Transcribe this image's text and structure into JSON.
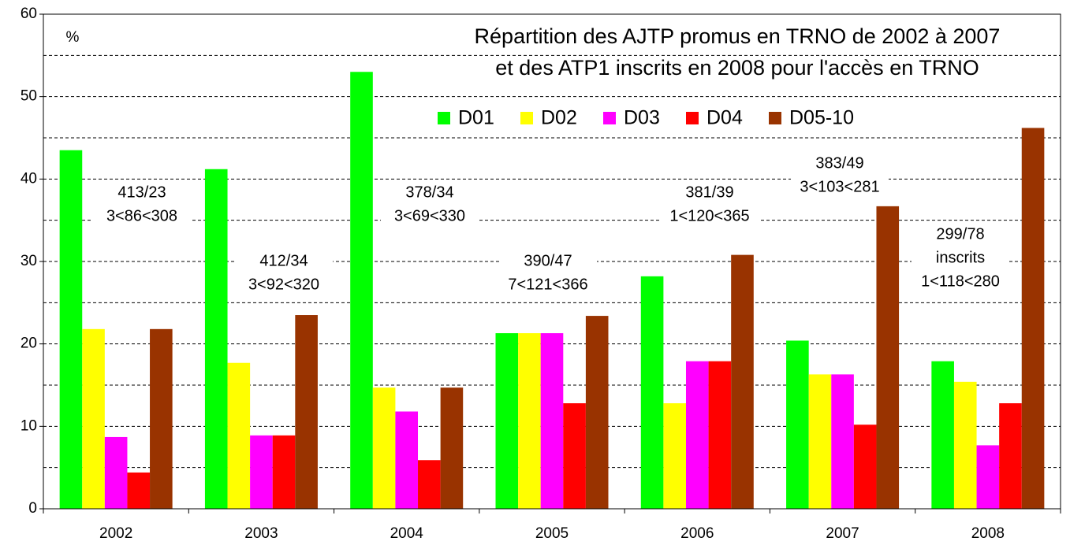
{
  "chart_data": {
    "type": "bar",
    "title": [
      "Répartition des AJTP promus en TRNO de 2002 à 2007",
      "et des ATP1 inscrits en 2008 pour l'accès en TRNO"
    ],
    "y_label": "%",
    "categories": [
      "2002",
      "2003",
      "2004",
      "2005",
      "2006",
      "2007",
      "2008"
    ],
    "series": [
      {
        "name": "D01",
        "color": "#00ff00",
        "values": [
          43.5,
          41.2,
          53,
          21.3,
          28.2,
          20.4,
          17.9
        ]
      },
      {
        "name": "D02",
        "color": "#ffff00",
        "values": [
          21.8,
          17.7,
          14.7,
          21.3,
          12.8,
          16.3,
          15.4
        ]
      },
      {
        "name": "D03",
        "color": "#ff00ff",
        "values": [
          8.7,
          8.9,
          11.8,
          21.3,
          17.9,
          16.3,
          7.7
        ]
      },
      {
        "name": "D04",
        "color": "#ff0000",
        "values": [
          4.4,
          8.9,
          5.9,
          12.8,
          17.9,
          10.2,
          12.8
        ]
      },
      {
        "name": "D05-10",
        "color": "#993300",
        "values": [
          21.8,
          23.5,
          14.7,
          23.4,
          30.8,
          36.7,
          46.2
        ]
      }
    ],
    "annotations": [
      [
        "413/23",
        "3<86<308"
      ],
      [
        "412/34",
        "3<92<320"
      ],
      [
        "378/34",
        "3<69<330"
      ],
      [
        "390/47",
        "7<121<366"
      ],
      [
        "381/39",
        "1<120<365"
      ],
      [
        "383/49",
        "3<103<281"
      ],
      [
        "299/78",
        "inscrits",
        "1<118<280"
      ]
    ],
    "ylim": [
      0,
      60
    ],
    "yticks": [
      0,
      10,
      20,
      30,
      40,
      50,
      60
    ],
    "minor_yticks": [
      5,
      15,
      25,
      35,
      45,
      55
    ],
    "grid": true
  }
}
